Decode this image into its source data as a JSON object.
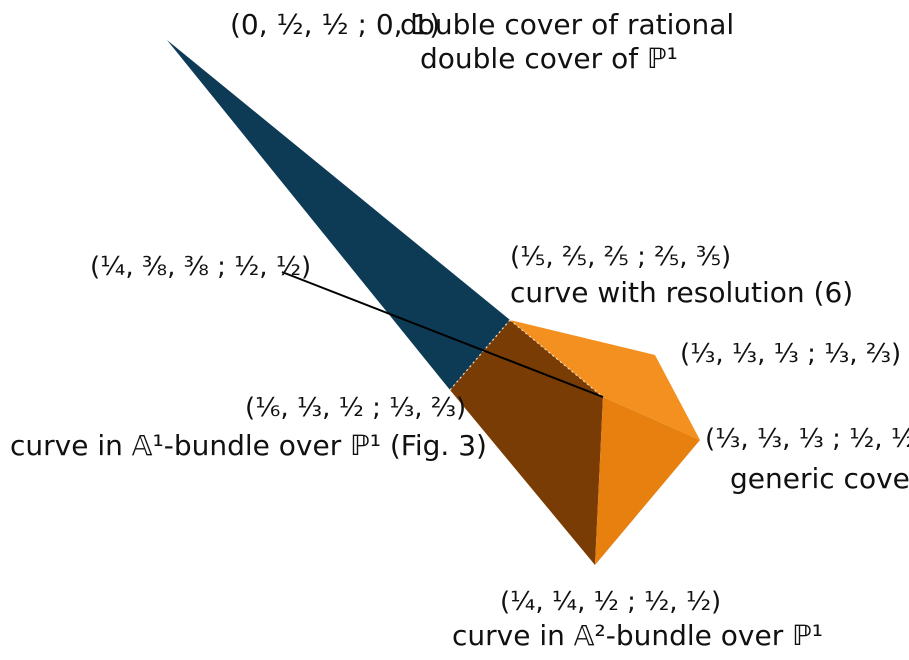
{
  "colors": {
    "blue_face": "#0d3b56",
    "orange_dark": "#7a3c05",
    "orange_mid": "#b0620e",
    "orange_light": "#f3901f",
    "orange_front": "#e88010",
    "text": "#111111"
  },
  "labels": {
    "top_coords": "(0, ½, ½ ; 0, 1)",
    "top_desc_line1": "double cover of rational",
    "top_desc_line2": "double cover of ℙ¹",
    "left_coords": "(¼, ⅜, ⅜ ; ½, ½)",
    "upper_right_coords": "(⅕, ⅖, ⅖ ; ⅖, ⅗)",
    "upper_right_desc": "curve with resolution (6)",
    "right_top_coords": "(⅓, ⅓, ⅓ ; ⅓, ⅔)",
    "mid_left_coords": "(⅙, ⅓, ½ ; ⅓, ⅔)",
    "mid_left_desc": "curve in 𝔸¹-bundle over ℙ¹ (Fig. 3)",
    "right_coords": "(⅓, ⅓, ⅓ ; ½, ½)",
    "right_desc": "generic cover",
    "bottom_coords": "(¼, ¼, ½ ; ½, ½)",
    "bottom_desc": "curve in 𝔸²-bundle over ℙ¹"
  }
}
